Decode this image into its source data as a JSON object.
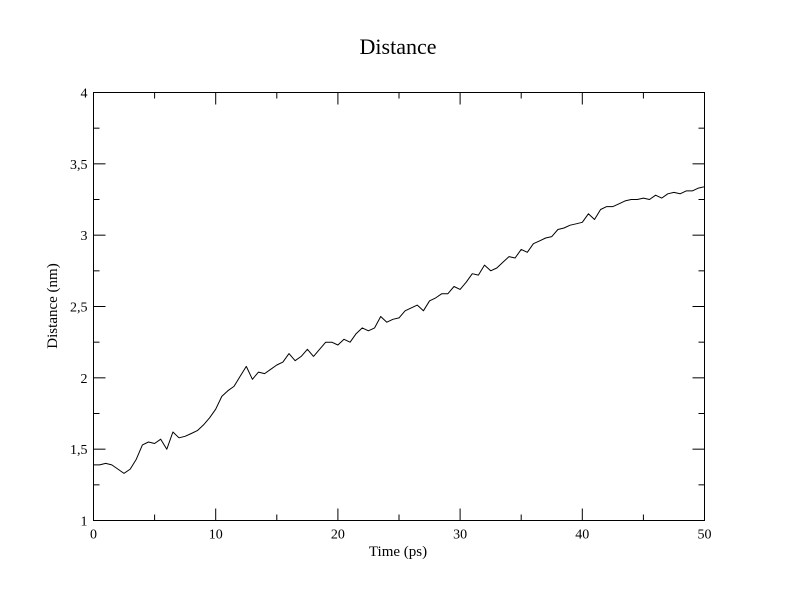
{
  "chart_data": {
    "type": "line",
    "title": "Distance",
    "xlabel": "Time (ps)",
    "ylabel": "Distance (nm)",
    "xlim": [
      0,
      50
    ],
    "ylim": [
      1,
      4
    ],
    "x_ticks": [
      {
        "value": 0,
        "label": "0"
      },
      {
        "value": 10,
        "label": "10"
      },
      {
        "value": 20,
        "label": "20"
      },
      {
        "value": 30,
        "label": "30"
      },
      {
        "value": 40,
        "label": "40"
      },
      {
        "value": 50,
        "label": "50"
      }
    ],
    "x_minor_step": 5,
    "y_ticks": [
      {
        "value": 1,
        "label": "1"
      },
      {
        "value": 1.5,
        "label": "1,5"
      },
      {
        "value": 2,
        "label": "2"
      },
      {
        "value": 2.5,
        "label": "2,5"
      },
      {
        "value": 3,
        "label": "3"
      },
      {
        "value": 3.5,
        "label": "3,5"
      },
      {
        "value": 4,
        "label": "4"
      }
    ],
    "y_minor_step": 0.25,
    "grid": false,
    "legend": "none",
    "line_color": "#000000",
    "series": [
      {
        "x": [
          0,
          0.5,
          1,
          1.5,
          2,
          2.5,
          3,
          3.5,
          4,
          4.5,
          5,
          5.5,
          6,
          6.5,
          7,
          7.5,
          8,
          8.5,
          9,
          9.5,
          10,
          10.5,
          11,
          11.5,
          12,
          12.5,
          13,
          13.5,
          14,
          14.5,
          15,
          15.5,
          16,
          16.5,
          17,
          17.5,
          18,
          18.5,
          19,
          19.5,
          20,
          20.5,
          21,
          21.5,
          22,
          22.5,
          23,
          23.5,
          24,
          24.5,
          25,
          25.5,
          26,
          26.5,
          27,
          27.5,
          28,
          28.5,
          29,
          29.5,
          30,
          30.5,
          31,
          31.5,
          32,
          32.5,
          33,
          33.5,
          34,
          34.5,
          35,
          35.5,
          36,
          36.5,
          37,
          37.5,
          38,
          38.5,
          39,
          39.5,
          40,
          40.5,
          41,
          41.5,
          42,
          42.5,
          43,
          43.5,
          44,
          44.5,
          45,
          45.5,
          46,
          46.5,
          47,
          47.5,
          48,
          48.5,
          49,
          49.5,
          50
        ],
        "values": [
          1.39,
          1.39,
          1.4,
          1.39,
          1.36,
          1.33,
          1.36,
          1.43,
          1.53,
          1.55,
          1.54,
          1.57,
          1.5,
          1.62,
          1.58,
          1.59,
          1.61,
          1.63,
          1.67,
          1.72,
          1.78,
          1.87,
          1.91,
          1.94,
          2.01,
          2.08,
          1.99,
          2.04,
          2.03,
          2.06,
          2.09,
          2.11,
          2.17,
          2.12,
          2.15,
          2.2,
          2.15,
          2.2,
          2.25,
          2.25,
          2.23,
          2.27,
          2.25,
          2.31,
          2.35,
          2.33,
          2.35,
          2.43,
          2.39,
          2.41,
          2.42,
          2.47,
          2.49,
          2.51,
          2.47,
          2.54,
          2.56,
          2.59,
          2.59,
          2.64,
          2.62,
          2.67,
          2.73,
          2.72,
          2.79,
          2.75,
          2.77,
          2.81,
          2.85,
          2.84,
          2.9,
          2.88,
          2.94,
          2.96,
          2.98,
          2.99,
          3.04,
          3.05,
          3.07,
          3.08,
          3.09,
          3.15,
          3.11,
          3.18,
          3.2,
          3.2,
          3.22,
          3.24,
          3.25,
          3.25,
          3.26,
          3.25,
          3.28,
          3.26,
          3.29,
          3.3,
          3.29,
          3.31,
          3.31,
          3.33,
          3.34
        ]
      }
    ]
  }
}
